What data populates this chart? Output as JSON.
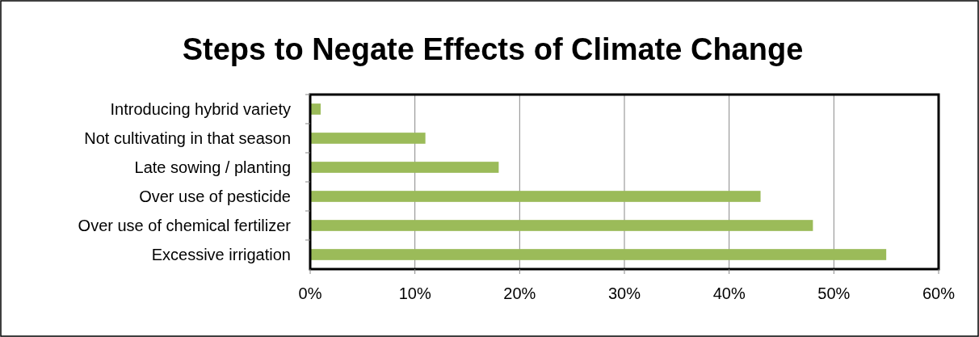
{
  "chart_data": {
    "type": "bar",
    "orientation": "horizontal",
    "title": "Steps to Negate Effects of Climate Change",
    "categories": [
      "Introducing hybrid variety",
      "Not cultivating in that season",
      "Late sowing / planting",
      "Over use of pesticide",
      "Over use of chemical fertilizer",
      "Excessive irrigation"
    ],
    "values": [
      1,
      11,
      18,
      43,
      48,
      55
    ],
    "color": "#9bbb59",
    "xlim": [
      0,
      60
    ],
    "xticks": [
      {
        "value": 0,
        "label": "0%"
      },
      {
        "value": 10,
        "label": "10%"
      },
      {
        "value": 20,
        "label": "20%"
      },
      {
        "value": 30,
        "label": "30%"
      },
      {
        "value": 40,
        "label": "40%"
      },
      {
        "value": 50,
        "label": "50%"
      },
      {
        "value": 60,
        "label": "60%"
      }
    ],
    "grid": "x"
  }
}
